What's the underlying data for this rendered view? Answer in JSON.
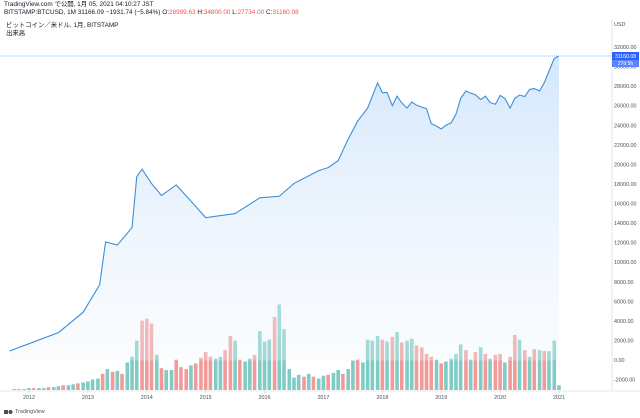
{
  "header": {
    "line1": "TradingView.com で公開, 1月 05, 2021 04:10:27 JST",
    "symbol": "BITSTAMP:BTCUSD, 1M",
    "last": "31166.09",
    "change": "−1931.74 (−5.84%)",
    "o_label": "O:",
    "o_value": "28999.63",
    "h_label": "H:",
    "h_value": "34800.00",
    "l_label": "L:",
    "l_value": "27734.00",
    "c_label": "C:",
    "c_value": "31160.08",
    "legend_title": "ビットコイン／米ドル, 1月, BITSTAMP",
    "legend_sub": "出来高"
  },
  "axis": {
    "currency": "USD"
  },
  "footer": {
    "brand": "TradingView"
  },
  "colors": {
    "line": "#3b8fd9",
    "fill_top": "#cfe4fb",
    "vol_up": "#80cbc4",
    "vol_down": "#f29a9a",
    "price_tag": "#2962ff"
  },
  "chart_data": {
    "type": "line",
    "price_scale": "log",
    "yticks": [
      -2000,
      0,
      2000,
      4000,
      6000,
      8000,
      10000,
      12000,
      14000,
      16000,
      18000,
      20000,
      22000,
      24000,
      26000,
      28000,
      30000,
      32000
    ],
    "ytick_labels": [
      "-2000.00",
      "0.00",
      "2000.00",
      "4000.00",
      "6000.00",
      "8000.00",
      "10000.00",
      "12000.00",
      "14000.00",
      "16000.00",
      "18000.00",
      "20000.00",
      "22000.00",
      "24000.00",
      "26000.00",
      "28000.00",
      "30000.00",
      "32000.00"
    ],
    "xticks": [
      "2012",
      "2013",
      "2014",
      "2015",
      "2016",
      "2017",
      "2018",
      "2019",
      "2020",
      "2021"
    ],
    "last_price_label": "31160.08",
    "countdown_label": "27d 5h",
    "price": [
      [
        2011.67,
        4
      ],
      [
        2012.0,
        5
      ],
      [
        2012.5,
        7
      ],
      [
        2012.92,
        13
      ],
      [
        2013.2,
        30
      ],
      [
        2013.3,
        110
      ],
      [
        2013.5,
        100
      ],
      [
        2013.75,
        170
      ],
      [
        2013.83,
        800
      ],
      [
        2013.92,
        1000
      ],
      [
        2014.08,
        650
      ],
      [
        2014.25,
        450
      ],
      [
        2014.5,
        620
      ],
      [
        2014.75,
        380
      ],
      [
        2015.0,
        230
      ],
      [
        2015.5,
        260
      ],
      [
        2015.92,
        420
      ],
      [
        2016.25,
        440
      ],
      [
        2016.5,
        650
      ],
      [
        2016.92,
        960
      ],
      [
        2017.08,
        1050
      ],
      [
        2017.25,
        1300
      ],
      [
        2017.42,
        2500
      ],
      [
        2017.58,
        4300
      ],
      [
        2017.75,
        6400
      ],
      [
        2017.92,
        13800
      ],
      [
        2018.0,
        10200
      ],
      [
        2018.08,
        10300
      ],
      [
        2018.17,
        6900
      ],
      [
        2018.25,
        9200
      ],
      [
        2018.33,
        7500
      ],
      [
        2018.42,
        6400
      ],
      [
        2018.5,
        7700
      ],
      [
        2018.58,
        7000
      ],
      [
        2018.67,
        6600
      ],
      [
        2018.75,
        6300
      ],
      [
        2018.83,
        4000
      ],
      [
        2018.92,
        3700
      ],
      [
        2019.0,
        3400
      ],
      [
        2019.08,
        3800
      ],
      [
        2019.17,
        4100
      ],
      [
        2019.25,
        5300
      ],
      [
        2019.33,
        8600
      ],
      [
        2019.42,
        10800
      ],
      [
        2019.5,
        10100
      ],
      [
        2019.58,
        9600
      ],
      [
        2019.67,
        8300
      ],
      [
        2019.75,
        9200
      ],
      [
        2019.83,
        7600
      ],
      [
        2019.92,
        7200
      ],
      [
        2020.0,
        9400
      ],
      [
        2020.08,
        8600
      ],
      [
        2020.17,
        6400
      ],
      [
        2020.25,
        8600
      ],
      [
        2020.33,
        9500
      ],
      [
        2020.42,
        9100
      ],
      [
        2020.5,
        11300
      ],
      [
        2020.58,
        11600
      ],
      [
        2020.67,
        10800
      ],
      [
        2020.75,
        13800
      ],
      [
        2020.83,
        19700
      ],
      [
        2020.92,
        29000
      ],
      [
        2021.0,
        31160
      ]
    ],
    "volume": [
      [
        2011.75,
        1,
        "down"
      ],
      [
        2011.83,
        1,
        "up"
      ],
      [
        2011.92,
        1,
        "down"
      ],
      [
        2012.0,
        2,
        "up"
      ],
      [
        2012.08,
        2,
        "down"
      ],
      [
        2012.17,
        2,
        "up"
      ],
      [
        2012.25,
        2,
        "up"
      ],
      [
        2012.33,
        3,
        "down"
      ],
      [
        2012.42,
        3,
        "up"
      ],
      [
        2012.5,
        4,
        "up"
      ],
      [
        2012.58,
        5,
        "down"
      ],
      [
        2012.67,
        5,
        "up"
      ],
      [
        2012.75,
        6,
        "up"
      ],
      [
        2012.83,
        7,
        "down"
      ],
      [
        2012.92,
        8,
        "up"
      ],
      [
        2013.0,
        9,
        "up"
      ],
      [
        2013.08,
        11,
        "up"
      ],
      [
        2013.17,
        12,
        "up"
      ],
      [
        2013.25,
        17,
        "down"
      ],
      [
        2013.33,
        22,
        "up"
      ],
      [
        2013.42,
        19,
        "down"
      ],
      [
        2013.5,
        20,
        "up"
      ],
      [
        2013.58,
        17,
        "down"
      ],
      [
        2013.67,
        29,
        "up"
      ],
      [
        2013.75,
        35,
        "up"
      ],
      [
        2013.83,
        52,
        "up"
      ],
      [
        2013.92,
        73,
        "down"
      ],
      [
        2014.0,
        75,
        "down"
      ],
      [
        2014.08,
        70,
        "down"
      ],
      [
        2014.17,
        37,
        "up"
      ],
      [
        2014.25,
        23,
        "down"
      ],
      [
        2014.33,
        21,
        "up"
      ],
      [
        2014.42,
        21,
        "up"
      ],
      [
        2014.5,
        32,
        "down"
      ],
      [
        2014.58,
        24,
        "down"
      ],
      [
        2014.67,
        22,
        "down"
      ],
      [
        2014.75,
        26,
        "up"
      ],
      [
        2014.83,
        28,
        "down"
      ],
      [
        2014.92,
        34,
        "down"
      ],
      [
        2015.0,
        40,
        "down"
      ],
      [
        2015.08,
        35,
        "down"
      ],
      [
        2015.17,
        33,
        "up"
      ],
      [
        2015.25,
        35,
        "up"
      ],
      [
        2015.33,
        42,
        "down"
      ],
      [
        2015.42,
        57,
        "down"
      ],
      [
        2015.5,
        52,
        "up"
      ],
      [
        2015.58,
        32,
        "down"
      ],
      [
        2015.67,
        30,
        "up"
      ],
      [
        2015.75,
        33,
        "up"
      ],
      [
        2015.83,
        37,
        "down"
      ],
      [
        2015.92,
        62,
        "up"
      ],
      [
        2016.0,
        51,
        "up"
      ],
      [
        2016.08,
        53,
        "up"
      ],
      [
        2016.17,
        77,
        "down"
      ],
      [
        2016.25,
        90,
        "up"
      ],
      [
        2016.33,
        64,
        "up"
      ],
      [
        2016.42,
        22,
        "up"
      ],
      [
        2016.5,
        13,
        "up"
      ],
      [
        2016.58,
        16,
        "up"
      ],
      [
        2016.67,
        14,
        "down"
      ],
      [
        2016.75,
        17,
        "up"
      ],
      [
        2016.83,
        14,
        "down"
      ],
      [
        2016.92,
        12,
        "up"
      ],
      [
        2017.0,
        15,
        "up"
      ],
      [
        2017.08,
        16,
        "down"
      ],
      [
        2017.17,
        18,
        "up"
      ],
      [
        2017.25,
        21,
        "up"
      ],
      [
        2017.33,
        17,
        "down"
      ],
      [
        2017.42,
        22,
        "up"
      ],
      [
        2017.5,
        31,
        "up"
      ],
      [
        2017.58,
        32,
        "down"
      ],
      [
        2017.67,
        29,
        "up"
      ],
      [
        2017.75,
        53,
        "up"
      ],
      [
        2017.83,
        52,
        "up"
      ],
      [
        2017.92,
        57,
        "up"
      ],
      [
        2018.0,
        53,
        "down"
      ],
      [
        2018.08,
        51,
        "up"
      ],
      [
        2018.17,
        56,
        "down"
      ],
      [
        2018.25,
        61,
        "up"
      ],
      [
        2018.33,
        50,
        "down"
      ],
      [
        2018.42,
        52,
        "up"
      ],
      [
        2018.5,
        54,
        "up"
      ],
      [
        2018.58,
        47,
        "down"
      ],
      [
        2018.67,
        45,
        "down"
      ],
      [
        2018.75,
        38,
        "down"
      ],
      [
        2018.83,
        35,
        "down"
      ],
      [
        2018.92,
        32,
        "up"
      ],
      [
        2019.0,
        28,
        "down"
      ],
      [
        2019.08,
        30,
        "up"
      ],
      [
        2019.17,
        33,
        "up"
      ],
      [
        2019.25,
        38,
        "up"
      ],
      [
        2019.33,
        48,
        "up"
      ],
      [
        2019.42,
        42,
        "down"
      ],
      [
        2019.5,
        32,
        "up"
      ],
      [
        2019.58,
        40,
        "down"
      ],
      [
        2019.67,
        45,
        "up"
      ],
      [
        2019.75,
        38,
        "down"
      ],
      [
        2019.83,
        33,
        "up"
      ],
      [
        2019.92,
        37,
        "down"
      ],
      [
        2020.0,
        38,
        "down"
      ],
      [
        2020.08,
        29,
        "up"
      ],
      [
        2020.17,
        35,
        "down"
      ],
      [
        2020.25,
        58,
        "down"
      ],
      [
        2020.33,
        53,
        "up"
      ],
      [
        2020.42,
        42,
        "down"
      ],
      [
        2020.5,
        35,
        "up"
      ],
      [
        2020.58,
        43,
        "down"
      ],
      [
        2020.67,
        42,
        "up"
      ],
      [
        2020.75,
        41,
        "down"
      ],
      [
        2020.83,
        41,
        "up"
      ],
      [
        2020.92,
        52,
        "up"
      ],
      [
        2021.0,
        5,
        "up"
      ]
    ]
  }
}
